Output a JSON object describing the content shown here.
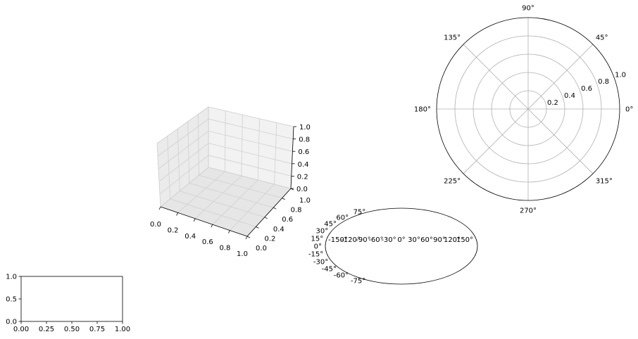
{
  "figure": {
    "background": "#ffffff",
    "axis_color": "#000000",
    "grid_color": "#b0b0b0",
    "pane_color": "#f2f2f2"
  },
  "chart_data": [
    {
      "type": "line",
      "name": "rectilinear-axes",
      "series": [],
      "xlim": [
        0,
        1
      ],
      "ylim": [
        0,
        1
      ],
      "xticks": [
        "0.00",
        "0.25",
        "0.50",
        "0.75",
        "1.00"
      ],
      "yticks": [
        "0.0",
        "0.5",
        "1.0"
      ],
      "grid": false
    },
    {
      "type": "line",
      "name": "3d-axes",
      "series": [],
      "xlim": [
        0,
        1
      ],
      "ylim": [
        0,
        1
      ],
      "zlim": [
        0,
        1
      ],
      "xticks": [
        "0.0",
        "0.2",
        "0.4",
        "0.6",
        "0.8",
        "1.0"
      ],
      "yticks": [
        "0.0",
        "0.2",
        "0.4",
        "0.6",
        "0.8",
        "1.0"
      ],
      "zticks": [
        "0.0",
        "0.2",
        "0.4",
        "0.6",
        "0.8",
        "1.0"
      ],
      "grid": true
    },
    {
      "type": "line",
      "name": "mollweide-axes",
      "series": [],
      "longitude_ticks": [
        "-150°",
        "-120°",
        "-90°",
        "-60°",
        "-30°",
        "0°",
        "30°",
        "60°",
        "90°",
        "120°",
        "150°"
      ],
      "latitude_ticks": [
        "75°",
        "60°",
        "45°",
        "30°",
        "15°",
        "0°",
        "-15°",
        "-30°",
        "-45°",
        "-60°",
        "-75°"
      ],
      "grid": false
    },
    {
      "type": "line",
      "name": "polar-axes",
      "series": [],
      "theta_ticks": [
        "0°",
        "45°",
        "90°",
        "135°",
        "180°",
        "225°",
        "270°",
        "315°"
      ],
      "r_ticks": [
        "0.2",
        "0.4",
        "0.6",
        "0.8",
        "1.0"
      ],
      "rlim": [
        0,
        1
      ],
      "grid": true
    }
  ]
}
